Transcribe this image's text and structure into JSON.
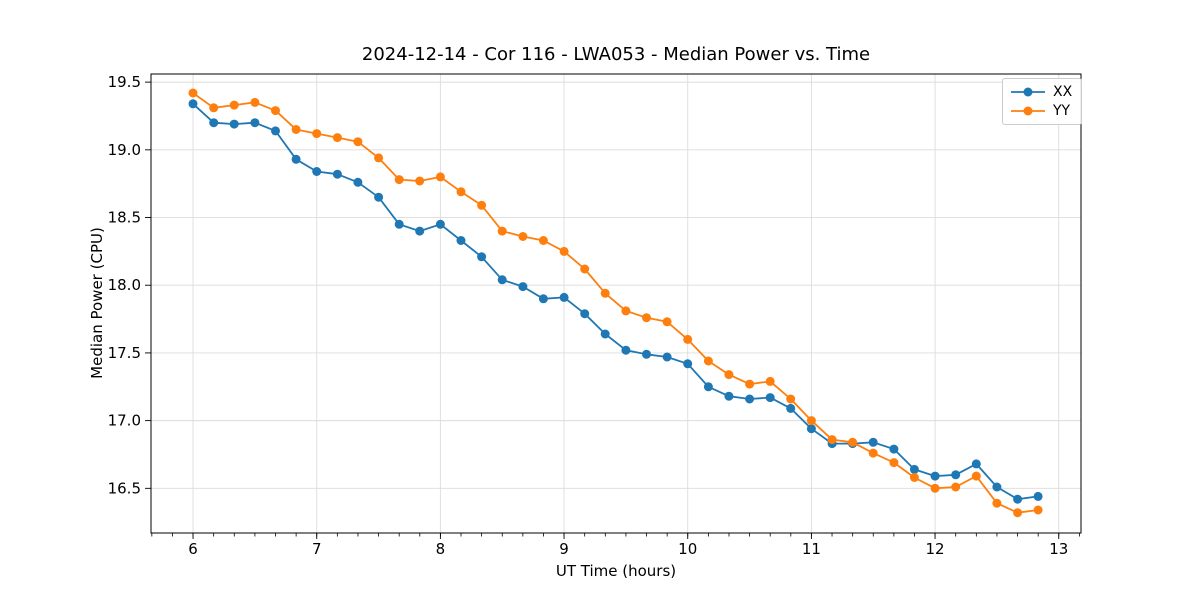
{
  "chart_data": {
    "type": "line",
    "title": "2024-12-14 - Cor 116 - LWA053 - Median Power vs. Time",
    "xlabel": "UT Time (hours)",
    "ylabel": "Median Power (CPU)",
    "xlim": [
      5.66,
      13.18
    ],
    "ylim": [
      16.17,
      19.56
    ],
    "xticks": [
      6,
      7,
      8,
      9,
      10,
      11,
      12,
      13
    ],
    "xtick_labels": [
      "6",
      "7",
      "8",
      "9",
      "10",
      "11",
      "12",
      "13"
    ],
    "yticks": [
      16.5,
      17.0,
      17.5,
      18.0,
      18.5,
      19.0,
      19.5
    ],
    "ytick_labels": [
      "16.5",
      "17.0",
      "17.5",
      "18.0",
      "18.5",
      "19.0",
      "19.5"
    ],
    "x_minor_tick_step": 0.16667,
    "grid": true,
    "grid_color": "#dcdcdc",
    "axis_color": "#000000",
    "legend_position": "upper right",
    "x": [
      6.0,
      6.167,
      6.333,
      6.5,
      6.667,
      6.833,
      7.0,
      7.167,
      7.333,
      7.5,
      7.667,
      7.833,
      8.0,
      8.167,
      8.333,
      8.5,
      8.667,
      8.833,
      9.0,
      9.167,
      9.333,
      9.5,
      9.667,
      9.833,
      10.0,
      10.167,
      10.333,
      10.5,
      10.667,
      10.833,
      11.0,
      11.167,
      11.333,
      11.5,
      11.667,
      11.833,
      12.0,
      12.167,
      12.333,
      12.5,
      12.667,
      12.833
    ],
    "series": [
      {
        "name": "XX",
        "color": "#1f77b4",
        "values": [
          19.34,
          19.2,
          19.19,
          19.2,
          19.14,
          18.93,
          18.84,
          18.82,
          18.76,
          18.65,
          18.45,
          18.4,
          18.45,
          18.33,
          18.21,
          18.04,
          17.99,
          17.9,
          17.91,
          17.79,
          17.64,
          17.52,
          17.49,
          17.47,
          17.42,
          17.25,
          17.18,
          17.16,
          17.17,
          17.09,
          16.94,
          16.83,
          16.83,
          16.84,
          16.79,
          16.64,
          16.59,
          16.6,
          16.68,
          16.51,
          16.42,
          16.44
        ]
      },
      {
        "name": "YY",
        "color": "#ff7f0e",
        "values": [
          19.42,
          19.31,
          19.33,
          19.35,
          19.29,
          19.15,
          19.12,
          19.09,
          19.06,
          18.94,
          18.78,
          18.77,
          18.8,
          18.69,
          18.59,
          18.4,
          18.36,
          18.33,
          18.25,
          18.12,
          17.94,
          17.81,
          17.76,
          17.73,
          17.6,
          17.44,
          17.34,
          17.27,
          17.29,
          17.16,
          17.0,
          16.86,
          16.84,
          16.76,
          16.69,
          16.58,
          16.5,
          16.51,
          16.59,
          16.39,
          16.32,
          16.34
        ]
      }
    ]
  }
}
